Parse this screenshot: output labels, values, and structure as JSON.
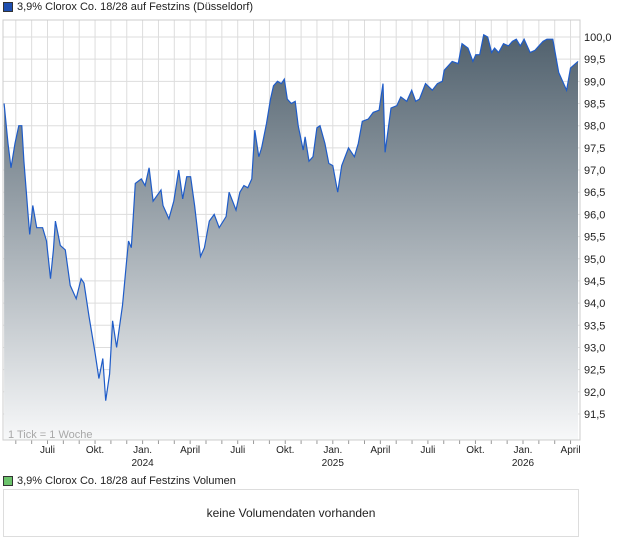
{
  "price_legend": "3,9% Clorox Co. 18/28 auf Festzins (Düsseldorf)",
  "volume_legend": "3,9% Clorox Co. 18/28 auf Festzins Volumen",
  "volume_message": "keine Volumendaten vorhanden",
  "colors": {
    "line": "#1f5cc8",
    "fill_top": "#4a5b68",
    "fill_bottom": "#f7f8f9",
    "grid": "#dddddd",
    "price_swatch": "#1f4fb0",
    "volume_swatch": "#6cc36c"
  },
  "chart_data": {
    "type": "area",
    "title": "3,9% Clorox Co. 18/28 auf Festzins (Düsseldorf)",
    "xlabel": "",
    "ylabel": "",
    "x_unit": "months since Jan 2023 (0 = Jan 2023)",
    "tick_note": "1 Tick = 1 Woche",
    "ylim": [
      90.9,
      100.38
    ],
    "xlim": [
      3.2,
      39.6
    ],
    "y_ticks": [
      "91,5",
      "92,0",
      "92,5",
      "93,0",
      "93,5",
      "94,0",
      "94,5",
      "95,0",
      "95,5",
      "96,0",
      "96,5",
      "97,0",
      "97,5",
      "98,0",
      "98,5",
      "99,0",
      "99,5",
      "100,0"
    ],
    "x_ticks": [
      {
        "m": 6,
        "label": "Juli"
      },
      {
        "m": 9,
        "label": "Okt."
      },
      {
        "m": 12,
        "label": "Jan.",
        "year": "2024"
      },
      {
        "m": 15,
        "label": "April"
      },
      {
        "m": 18,
        "label": "Juli"
      },
      {
        "m": 21,
        "label": "Okt."
      },
      {
        "m": 24,
        "label": "Jan.",
        "year": "2025"
      },
      {
        "m": 27,
        "label": "April"
      },
      {
        "m": 30,
        "label": "Juli"
      },
      {
        "m": 33,
        "label": "Okt."
      },
      {
        "m": 36,
        "label": "Jan.",
        "year": "2026"
      },
      {
        "m": 39,
        "label": "April"
      }
    ],
    "grid": true,
    "points": [
      [
        3.26,
        98.5
      ],
      [
        3.51,
        97.6
      ],
      [
        3.7,
        97.05
      ],
      [
        3.95,
        97.6
      ],
      [
        4.19,
        98.0
      ],
      [
        4.38,
        98.0
      ],
      [
        4.51,
        97.2
      ],
      [
        4.69,
        96.4
      ],
      [
        4.75,
        96.1
      ],
      [
        4.88,
        95.55
      ],
      [
        5.07,
        96.2
      ],
      [
        5.32,
        95.7
      ],
      [
        5.69,
        95.7
      ],
      [
        5.94,
        95.4
      ],
      [
        6.19,
        94.55
      ],
      [
        6.37,
        95.2
      ],
      [
        6.5,
        95.85
      ],
      [
        6.81,
        95.3
      ],
      [
        7.12,
        95.2
      ],
      [
        7.43,
        94.4
      ],
      [
        7.81,
        94.1
      ],
      [
        8.12,
        94.55
      ],
      [
        8.3,
        94.45
      ],
      [
        8.62,
        93.7
      ],
      [
        8.99,
        92.9
      ],
      [
        9.24,
        92.3
      ],
      [
        9.49,
        92.75
      ],
      [
        9.67,
        91.8
      ],
      [
        9.92,
        92.4
      ],
      [
        10.11,
        93.6
      ],
      [
        10.36,
        93.0
      ],
      [
        10.73,
        93.95
      ],
      [
        10.98,
        94.9
      ],
      [
        11.11,
        95.4
      ],
      [
        11.29,
        95.25
      ],
      [
        11.42,
        96.0
      ],
      [
        11.54,
        96.7
      ],
      [
        11.92,
        96.8
      ],
      [
        12.16,
        96.65
      ],
      [
        12.41,
        97.05
      ],
      [
        12.66,
        96.3
      ],
      [
        13.16,
        96.55
      ],
      [
        13.29,
        96.2
      ],
      [
        13.66,
        95.9
      ],
      [
        13.97,
        96.3
      ],
      [
        14.28,
        97.0
      ],
      [
        14.53,
        96.35
      ],
      [
        14.78,
        96.85
      ],
      [
        15.03,
        96.85
      ],
      [
        15.28,
        96.2
      ],
      [
        15.65,
        95.05
      ],
      [
        15.9,
        95.25
      ],
      [
        16.21,
        95.85
      ],
      [
        16.52,
        96.0
      ],
      [
        16.83,
        95.7
      ],
      [
        17.27,
        95.95
      ],
      [
        17.46,
        96.5
      ],
      [
        17.89,
        96.1
      ],
      [
        18.14,
        96.5
      ],
      [
        18.39,
        96.65
      ],
      [
        18.64,
        96.6
      ],
      [
        18.89,
        96.8
      ],
      [
        19.08,
        97.9
      ],
      [
        19.33,
        97.3
      ],
      [
        19.51,
        97.5
      ],
      [
        19.82,
        98.05
      ],
      [
        20.07,
        98.6
      ],
      [
        20.26,
        98.9
      ],
      [
        20.51,
        99.0
      ],
      [
        20.76,
        98.95
      ],
      [
        20.94,
        99.05
      ],
      [
        21.13,
        98.6
      ],
      [
        21.38,
        98.5
      ],
      [
        21.63,
        98.55
      ],
      [
        21.82,
        98.0
      ],
      [
        22.13,
        97.45
      ],
      [
        22.25,
        97.75
      ],
      [
        22.5,
        97.2
      ],
      [
        22.75,
        97.3
      ],
      [
        23.0,
        97.95
      ],
      [
        23.19,
        98.0
      ],
      [
        23.5,
        97.6
      ],
      [
        23.75,
        97.15
      ],
      [
        24.0,
        97.1
      ],
      [
        24.31,
        96.5
      ],
      [
        24.56,
        97.1
      ],
      [
        24.99,
        97.5
      ],
      [
        25.36,
        97.3
      ],
      [
        25.61,
        97.6
      ],
      [
        25.86,
        98.1
      ],
      [
        26.24,
        98.15
      ],
      [
        26.55,
        98.3
      ],
      [
        26.92,
        98.35
      ],
      [
        27.17,
        98.95
      ],
      [
        27.3,
        97.4
      ],
      [
        27.67,
        98.4
      ],
      [
        28.04,
        98.45
      ],
      [
        28.29,
        98.65
      ],
      [
        28.67,
        98.55
      ],
      [
        28.98,
        98.8
      ],
      [
        29.23,
        98.55
      ],
      [
        29.47,
        98.6
      ],
      [
        29.85,
        98.95
      ],
      [
        30.28,
        98.8
      ],
      [
        30.6,
        98.95
      ],
      [
        30.91,
        99.0
      ],
      [
        31.03,
        99.25
      ],
      [
        31.53,
        99.45
      ],
      [
        31.91,
        99.4
      ],
      [
        32.15,
        99.85
      ],
      [
        32.53,
        99.75
      ],
      [
        32.84,
        99.45
      ],
      [
        33.02,
        99.6
      ],
      [
        33.27,
        99.6
      ],
      [
        33.52,
        100.05
      ],
      [
        33.77,
        100.0
      ],
      [
        34.02,
        99.65
      ],
      [
        34.21,
        99.75
      ],
      [
        34.46,
        99.65
      ],
      [
        34.77,
        99.85
      ],
      [
        35.08,
        99.8
      ],
      [
        35.33,
        99.9
      ],
      [
        35.58,
        99.95
      ],
      [
        35.83,
        99.8
      ],
      [
        36.07,
        99.95
      ],
      [
        36.45,
        99.65
      ],
      [
        36.76,
        99.7
      ],
      [
        37.26,
        99.9
      ],
      [
        37.51,
        99.95
      ],
      [
        37.88,
        99.95
      ],
      [
        38.25,
        99.2
      ],
      [
        38.75,
        98.8
      ],
      [
        39.0,
        99.3
      ],
      [
        39.47,
        99.45
      ]
    ]
  }
}
